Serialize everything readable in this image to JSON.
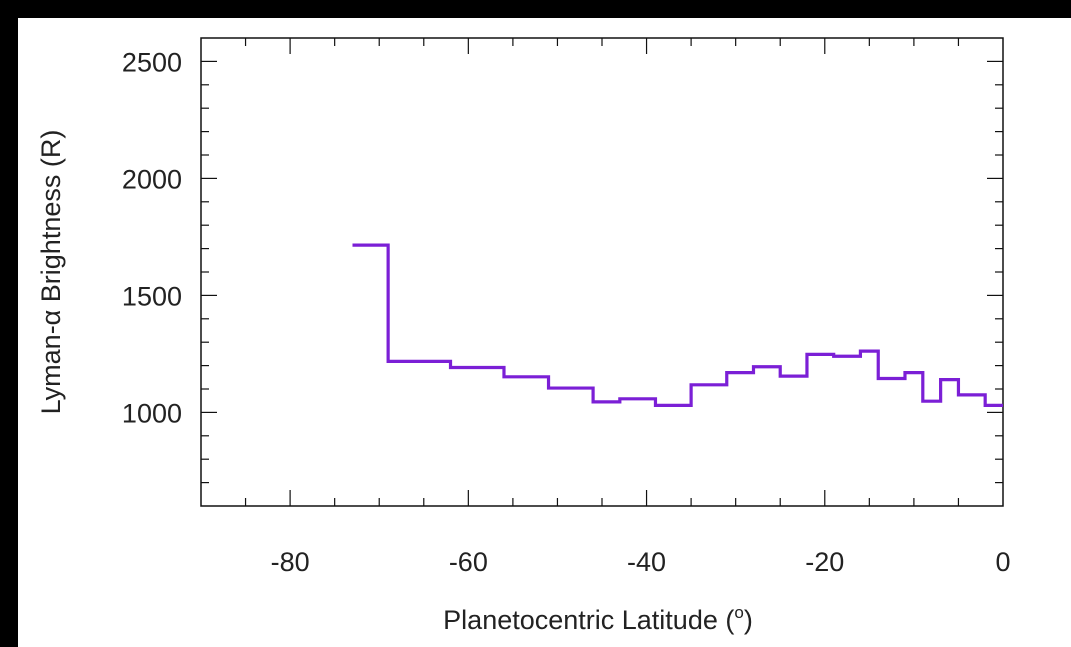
{
  "chart_data": {
    "type": "line",
    "step": true,
    "title": "",
    "xlabel": "Planetocentric Latitude (",
    "xlabel_sup": "o",
    "xlabel_end": ")",
    "ylabel": "Lyman-α Brightness (R)",
    "xlim": [
      -90,
      0
    ],
    "ylim": [
      600,
      2600
    ],
    "x_ticks": [
      -80,
      -60,
      -40,
      -20,
      0
    ],
    "x_tick_labels": [
      "-80",
      "-60",
      "-40",
      "-20",
      "0"
    ],
    "y_ticks": [
      1000,
      1500,
      2000,
      2500
    ],
    "y_tick_labels": [
      "1000",
      "1500",
      "2000",
      "2500"
    ],
    "x_minor_step": 5,
    "y_minor_step": 100,
    "grid": false,
    "line_color": "#7b1fd6",
    "series": [
      {
        "bins": [
          {
            "x0": -73,
            "x1": -69,
            "y": 1715
          },
          {
            "x0": -69,
            "x1": -62,
            "y": 1218
          },
          {
            "x0": -62,
            "x1": -56,
            "y": 1192
          },
          {
            "x0": -56,
            "x1": -51,
            "y": 1152
          },
          {
            "x0": -51,
            "x1": -46,
            "y": 1104
          },
          {
            "x0": -46,
            "x1": -43,
            "y": 1045
          },
          {
            "x0": -43,
            "x1": -39,
            "y": 1058
          },
          {
            "x0": -39,
            "x1": -35,
            "y": 1030
          },
          {
            "x0": -35,
            "x1": -31,
            "y": 1118
          },
          {
            "x0": -31,
            "x1": -28,
            "y": 1170
          },
          {
            "x0": -28,
            "x1": -25,
            "y": 1195
          },
          {
            "x0": -25,
            "x1": -22,
            "y": 1155
          },
          {
            "x0": -22,
            "x1": -19,
            "y": 1248
          },
          {
            "x0": -19,
            "x1": -16,
            "y": 1240
          },
          {
            "x0": -16,
            "x1": -14,
            "y": 1262
          },
          {
            "x0": -14,
            "x1": -11,
            "y": 1145
          },
          {
            "x0": -11,
            "x1": -9,
            "y": 1170
          },
          {
            "x0": -9,
            "x1": -7,
            "y": 1048
          },
          {
            "x0": -7,
            "x1": -5,
            "y": 1140
          },
          {
            "x0": -5,
            "x1": -2,
            "y": 1075
          },
          {
            "x0": -2,
            "x1": 0,
            "y": 1030
          }
        ]
      }
    ]
  }
}
